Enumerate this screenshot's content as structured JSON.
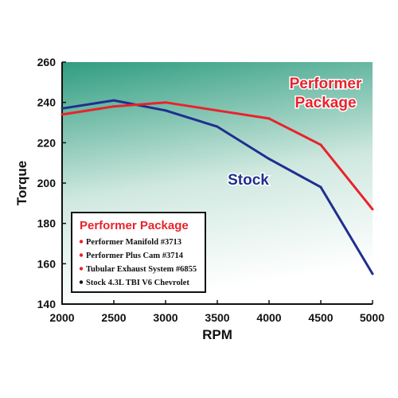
{
  "chart_data": {
    "type": "line",
    "xlabel": "RPM",
    "ylabel": "Torque",
    "x": [
      2000,
      2500,
      3000,
      3500,
      4000,
      4500,
      5000
    ],
    "x_ticks": [
      "2000",
      "2500",
      "3000",
      "3500",
      "4000",
      "4500",
      "5000"
    ],
    "y_ticks": [
      "140",
      "160",
      "180",
      "200",
      "220",
      "240",
      "260"
    ],
    "xlim": [
      2000,
      5000
    ],
    "ylim": [
      140,
      260
    ],
    "grid": false,
    "series": [
      {
        "name": "Stock",
        "color": "#1f2f8f",
        "points": [
          [
            2000,
            237
          ],
          [
            2500,
            241
          ],
          [
            3000,
            236
          ],
          [
            3500,
            228
          ],
          [
            4000,
            212
          ],
          [
            4500,
            198
          ],
          [
            5000,
            155
          ]
        ]
      },
      {
        "name": "Performer Package",
        "name_lines": [
          "Performer",
          "Package"
        ],
        "color": "#e8232d",
        "points": [
          [
            2000,
            234
          ],
          [
            2500,
            238
          ],
          [
            3000,
            240
          ],
          [
            3500,
            236
          ],
          [
            4000,
            232
          ],
          [
            4500,
            219
          ],
          [
            5000,
            187
          ]
        ]
      }
    ],
    "legend": {
      "title": "Performer Package",
      "title_color": "#e8232d",
      "placement": "bottom-left",
      "items": [
        {
          "text": "Performer Manifold #3713",
          "bullet_color": "#e8232d"
        },
        {
          "text": "Performer Plus Cam #3714",
          "bullet_color": "#e8232d"
        },
        {
          "text": "Tubular Exhaust System #6855",
          "bullet_color": "#e8232d"
        },
        {
          "text": "Stock 4.3L TBI V6 Chevrolet",
          "bullet_color": "#111111"
        }
      ]
    },
    "background_gradient": [
      "#2f9d80",
      "#ffffff"
    ]
  }
}
